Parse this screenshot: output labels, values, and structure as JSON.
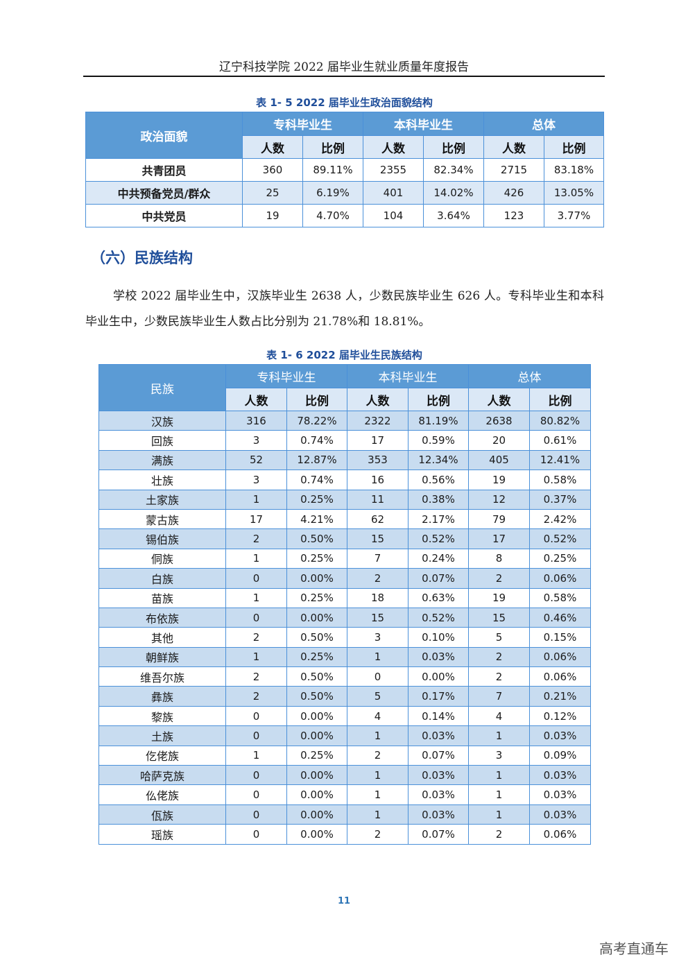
{
  "header": {
    "title": "辽宁科技学院 2022 届毕业生就业质量年度报告"
  },
  "table1": {
    "caption": "表 1- 5   2022 届毕业生政治面貌结构",
    "row_header": "政治面貌",
    "groups": [
      "专科毕业生",
      "本科毕业生",
      "总体"
    ],
    "subheaders": [
      "人数",
      "比例",
      "人数",
      "比例",
      "人数",
      "比例"
    ],
    "rows": [
      [
        "共青团员",
        "360",
        "89.11%",
        "2355",
        "82.34%",
        "2715",
        "83.18%"
      ],
      [
        "中共预备党员/群众",
        "25",
        "6.19%",
        "401",
        "14.02%",
        "426",
        "13.05%"
      ],
      [
        "中共党员",
        "19",
        "4.70%",
        "104",
        "3.64%",
        "123",
        "3.77%"
      ]
    ]
  },
  "section": {
    "title": "（六）民族结构"
  },
  "paragraph": {
    "text": "学校 2022 届毕业生中，汉族毕业生 2638 人，少数民族毕业生 626 人。专科毕业生和本科毕业生中，少数民族毕业生人数占比分别为 21.78%和 18.81%。"
  },
  "table2": {
    "caption": "表 1- 6   2022 届毕业生民族结构",
    "row_header": "民族",
    "groups": [
      "专科毕业生",
      "本科毕业生",
      "总体"
    ],
    "subheaders": [
      "人数",
      "比例",
      "人数",
      "比例",
      "人数",
      "比例"
    ],
    "rows": [
      [
        "汉族",
        "316",
        "78.22%",
        "2322",
        "81.19%",
        "2638",
        "80.82%"
      ],
      [
        "回族",
        "3",
        "0.74%",
        "17",
        "0.59%",
        "20",
        "0.61%"
      ],
      [
        "满族",
        "52",
        "12.87%",
        "353",
        "12.34%",
        "405",
        "12.41%"
      ],
      [
        "壮族",
        "3",
        "0.74%",
        "16",
        "0.56%",
        "19",
        "0.58%"
      ],
      [
        "土家族",
        "1",
        "0.25%",
        "11",
        "0.38%",
        "12",
        "0.37%"
      ],
      [
        "蒙古族",
        "17",
        "4.21%",
        "62",
        "2.17%",
        "79",
        "2.42%"
      ],
      [
        "锡伯族",
        "2",
        "0.50%",
        "15",
        "0.52%",
        "17",
        "0.52%"
      ],
      [
        "侗族",
        "1",
        "0.25%",
        "7",
        "0.24%",
        "8",
        "0.25%"
      ],
      [
        "白族",
        "0",
        "0.00%",
        "2",
        "0.07%",
        "2",
        "0.06%"
      ],
      [
        "苗族",
        "1",
        "0.25%",
        "18",
        "0.63%",
        "19",
        "0.58%"
      ],
      [
        "布依族",
        "0",
        "0.00%",
        "15",
        "0.52%",
        "15",
        "0.46%"
      ],
      [
        "其他",
        "2",
        "0.50%",
        "3",
        "0.10%",
        "5",
        "0.15%"
      ],
      [
        "朝鲜族",
        "1",
        "0.25%",
        "1",
        "0.03%",
        "2",
        "0.06%"
      ],
      [
        "维吾尔族",
        "2",
        "0.50%",
        "0",
        "0.00%",
        "2",
        "0.06%"
      ],
      [
        "彝族",
        "2",
        "0.50%",
        "5",
        "0.17%",
        "7",
        "0.21%"
      ],
      [
        "黎族",
        "0",
        "0.00%",
        "4",
        "0.14%",
        "4",
        "0.12%"
      ],
      [
        "土族",
        "0",
        "0.00%",
        "1",
        "0.03%",
        "1",
        "0.03%"
      ],
      [
        "仡佬族",
        "1",
        "0.25%",
        "2",
        "0.07%",
        "3",
        "0.09%"
      ],
      [
        "哈萨克族",
        "0",
        "0.00%",
        "1",
        "0.03%",
        "1",
        "0.03%"
      ],
      [
        "仫佬族",
        "0",
        "0.00%",
        "1",
        "0.03%",
        "1",
        "0.03%"
      ],
      [
        "佤族",
        "0",
        "0.00%",
        "1",
        "0.03%",
        "1",
        "0.03%"
      ],
      [
        "瑶族",
        "0",
        "0.00%",
        "2",
        "0.07%",
        "2",
        "0.06%"
      ]
    ]
  },
  "footer": {
    "page_number": "11",
    "watermark": "高考直通车"
  },
  "colors": {
    "header_fill": "#5b9bd5",
    "subheader_fill": "#dbe8f6",
    "alt_row": "#c8dcf0",
    "accent": "#1f4e9a"
  }
}
